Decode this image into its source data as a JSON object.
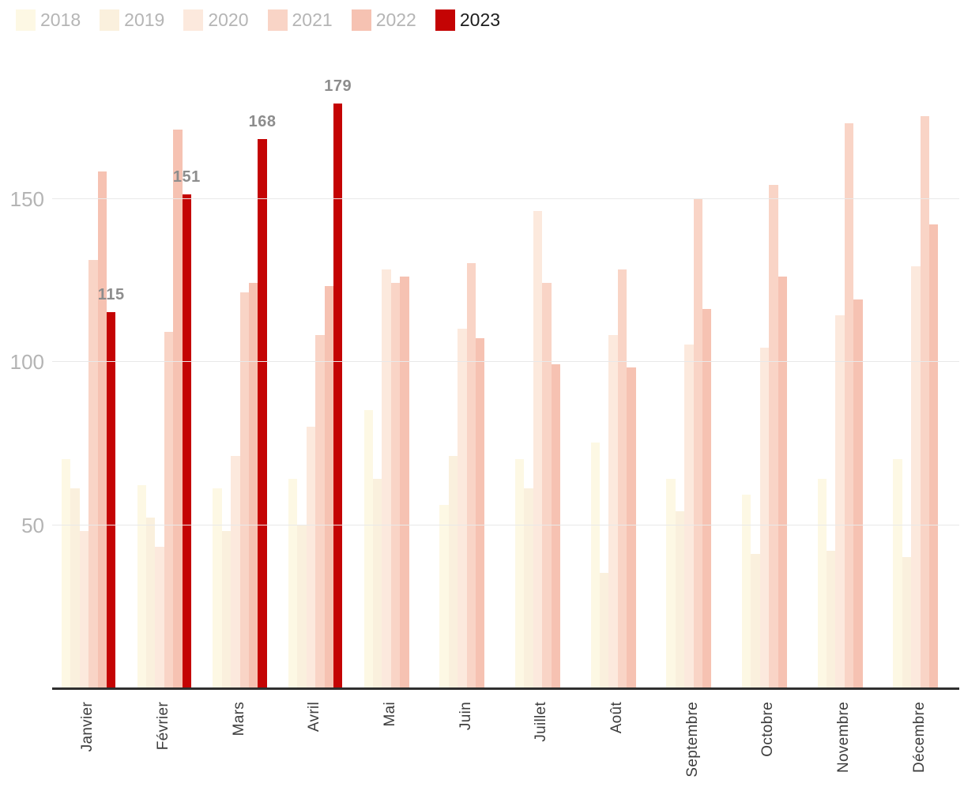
{
  "chart_data": {
    "type": "bar",
    "title": "",
    "categories": [
      "Janvier",
      "Février",
      "Mars",
      "Avril",
      "Mai",
      "Juin",
      "Juillet",
      "Août",
      "Septembre",
      "Octobre",
      "Novembre",
      "Décembre"
    ],
    "series": [
      {
        "name": "2018",
        "color": "#fdf8e4",
        "values": [
          70,
          62,
          61,
          64,
          85,
          56,
          70,
          75,
          64,
          59,
          64,
          70
        ]
      },
      {
        "name": "2019",
        "color": "#faf0dd",
        "values": [
          61,
          52,
          48,
          50,
          64,
          71,
          61,
          35,
          54,
          41,
          42,
          40
        ]
      },
      {
        "name": "2020",
        "color": "#fce9dd",
        "values": [
          48,
          43,
          71,
          80,
          128,
          110,
          146,
          108,
          105,
          104,
          114,
          129
        ]
      },
      {
        "name": "2021",
        "color": "#f9d4c6",
        "values": [
          131,
          109,
          121,
          108,
          124,
          130,
          124,
          128,
          150,
          154,
          173,
          175
        ]
      },
      {
        "name": "2022",
        "color": "#f6c2b2",
        "values": [
          158,
          171,
          124,
          123,
          126,
          107,
          99,
          98,
          116,
          126,
          119,
          142
        ]
      },
      {
        "name": "2023",
        "color": "#c40404",
        "values": [
          115,
          151,
          168,
          179,
          null,
          null,
          null,
          null,
          null,
          null,
          null,
          null
        ]
      }
    ],
    "y_axis": {
      "ticks": [
        50,
        100,
        150
      ],
      "range": [
        0,
        186
      ]
    },
    "x_axis": {
      "label_rotation": 90
    },
    "grid": "horizontal",
    "legend_position": "top-left",
    "value_labels": {
      "series": "2023",
      "values": [
        "115",
        "151",
        "168",
        "179"
      ],
      "months": [
        "Janvier",
        "Février",
        "Mars",
        "Avril"
      ]
    }
  },
  "colors": {
    "background": "#ffffff",
    "grid": "#e9e9e9",
    "axis": "#2f2f2f",
    "y_tick_text": "#b4b4b4",
    "x_tick_text": "#3d3d3d",
    "value_label_text": "#8d8d8d",
    "legend_text": "#b5b5b5",
    "legend_text_active": "#1d1d1d"
  }
}
